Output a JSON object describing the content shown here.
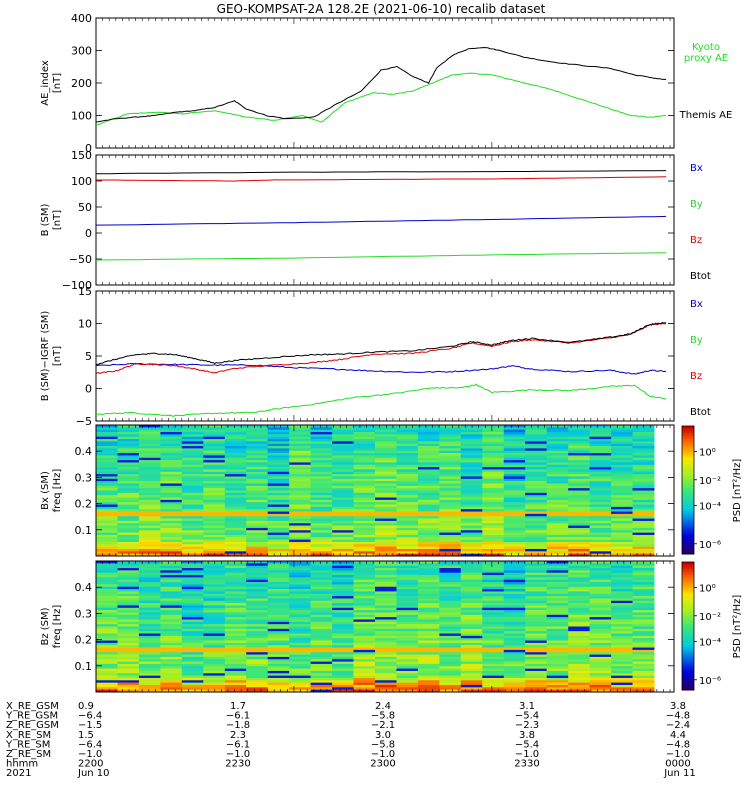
{
  "title": "GEO-KOMPSAT-2A 128.2E (2021-06-10) recalib dataset",
  "colors": {
    "black": "#000000",
    "green": "#22dd22",
    "blue": "#0000cc",
    "red": "#dd0000"
  },
  "chart_data": [
    {
      "type": "line",
      "id": "ae",
      "ylabel": "AE_index",
      "yunit": "[nT]",
      "ylim": [
        0,
        400
      ],
      "yticks": [
        "0",
        "100",
        "200",
        "300",
        "400"
      ],
      "x_hours": [
        22.0,
        23.5
      ],
      "series": [
        {
          "name": "Kyoto proxy AE",
          "color": "green",
          "points": [
            [
              0,
              70
            ],
            [
              0.08,
              105
            ],
            [
              0.15,
              110
            ],
            [
              0.22,
              105
            ],
            [
              0.3,
              115
            ],
            [
              0.38,
              95
            ],
            [
              0.45,
              85
            ],
            [
              0.52,
              100
            ],
            [
              0.57,
              80
            ],
            [
              0.63,
              140
            ],
            [
              0.7,
              170
            ],
            [
              0.75,
              165
            ],
            [
              0.8,
              175
            ],
            [
              0.85,
              200
            ],
            [
              0.9,
              225
            ],
            [
              0.95,
              230
            ],
            [
              1.0,
              225
            ],
            [
              1.05,
              210
            ],
            [
              1.1,
              195
            ],
            [
              1.15,
              180
            ],
            [
              1.2,
              160
            ],
            [
              1.25,
              140
            ],
            [
              1.3,
              120
            ],
            [
              1.35,
              100
            ],
            [
              1.4,
              95
            ],
            [
              1.44,
              100
            ]
          ]
        },
        {
          "name": "Themis AE",
          "color": "black",
          "points": [
            [
              0,
              80
            ],
            [
              0.05,
              90
            ],
            [
              0.1,
              95
            ],
            [
              0.15,
              100
            ],
            [
              0.2,
              110
            ],
            [
              0.25,
              115
            ],
            [
              0.3,
              125
            ],
            [
              0.35,
              145
            ],
            [
              0.38,
              120
            ],
            [
              0.43,
              100
            ],
            [
              0.48,
              90
            ],
            [
              0.55,
              95
            ],
            [
              0.6,
              130
            ],
            [
              0.67,
              175
            ],
            [
              0.72,
              240
            ],
            [
              0.76,
              250
            ],
            [
              0.8,
              220
            ],
            [
              0.84,
              200
            ],
            [
              0.86,
              245
            ],
            [
              0.9,
              285
            ],
            [
              0.94,
              305
            ],
            [
              0.98,
              310
            ],
            [
              1.02,
              300
            ],
            [
              1.08,
              280
            ],
            [
              1.15,
              265
            ],
            [
              1.22,
              255
            ],
            [
              1.3,
              245
            ],
            [
              1.36,
              225
            ],
            [
              1.41,
              215
            ],
            [
              1.44,
              210
            ]
          ]
        }
      ]
    },
    {
      "type": "line",
      "id": "bsm",
      "ylabel": "B (SM)",
      "yunit": "[nT]",
      "ylim": [
        -100,
        150
      ],
      "yticks": [
        "−100",
        "−50",
        "0",
        "50",
        "100",
        "150"
      ],
      "series": [
        {
          "name": "Bx",
          "color": "blue",
          "points": [
            [
              0,
              15
            ],
            [
              0.5,
              20
            ],
            [
              1.0,
              26
            ],
            [
              1.44,
              32
            ]
          ]
        },
        {
          "name": "By",
          "color": "green",
          "points": [
            [
              0,
              -52
            ],
            [
              0.5,
              -48
            ],
            [
              1.0,
              -42
            ],
            [
              1.44,
              -38
            ]
          ]
        },
        {
          "name": "Bz",
          "color": "red",
          "points": [
            [
              0,
              102
            ],
            [
              0.35,
              100
            ],
            [
              0.45,
              102
            ],
            [
              1.0,
              104
            ],
            [
              1.44,
              108
            ]
          ]
        },
        {
          "name": "Btot",
          "color": "black",
          "points": [
            [
              0,
              114
            ],
            [
              0.5,
              117
            ],
            [
              1.0,
              118
            ],
            [
              1.44,
              120
            ]
          ]
        }
      ]
    },
    {
      "type": "line",
      "id": "bigrf",
      "ylabel": "B (SM)−IGRF (SM)",
      "yunit": "[nT]",
      "ylim": [
        -5,
        15
      ],
      "yticks": [
        "−5",
        "0",
        "5",
        "10",
        "15"
      ],
      "series": [
        {
          "name": "Bx",
          "color": "blue",
          "points": [
            [
              0,
              3.5
            ],
            [
              0.1,
              3.8
            ],
            [
              0.2,
              3.7
            ],
            [
              0.3,
              3.6
            ],
            [
              0.4,
              3.6
            ],
            [
              0.5,
              3.2
            ],
            [
              0.6,
              3.0
            ],
            [
              0.7,
              2.7
            ],
            [
              0.8,
              2.5
            ],
            [
              0.9,
              2.6
            ],
            [
              1.0,
              3.0
            ],
            [
              1.05,
              3.5
            ],
            [
              1.1,
              3.0
            ],
            [
              1.2,
              2.6
            ],
            [
              1.3,
              2.8
            ],
            [
              1.36,
              2.2
            ],
            [
              1.4,
              2.8
            ],
            [
              1.44,
              2.6
            ]
          ]
        },
        {
          "name": "By",
          "color": "green",
          "points": [
            [
              0,
              -4.0
            ],
            [
              0.08,
              -3.7
            ],
            [
              0.15,
              -4.0
            ],
            [
              0.2,
              -4.2
            ],
            [
              0.3,
              -3.8
            ],
            [
              0.4,
              -3.7
            ],
            [
              0.45,
              -3.2
            ],
            [
              0.55,
              -2.4
            ],
            [
              0.65,
              -1.4
            ],
            [
              0.75,
              -0.8
            ],
            [
              0.85,
              0.1
            ],
            [
              0.92,
              0.1
            ],
            [
              0.96,
              0.6
            ],
            [
              1.0,
              -0.6
            ],
            [
              1.1,
              -0.2
            ],
            [
              1.2,
              -0.3
            ],
            [
              1.3,
              0.3
            ],
            [
              1.36,
              0.5
            ],
            [
              1.4,
              -1.2
            ],
            [
              1.44,
              -1.6
            ]
          ]
        },
        {
          "name": "Bz",
          "color": "red",
          "points": [
            [
              0,
              2.3
            ],
            [
              0.05,
              2.7
            ],
            [
              0.1,
              3.8
            ],
            [
              0.15,
              3.7
            ],
            [
              0.2,
              3.5
            ],
            [
              0.25,
              3.0
            ],
            [
              0.3,
              2.4
            ],
            [
              0.35,
              3.1
            ],
            [
              0.45,
              3.6
            ],
            [
              0.55,
              4.0
            ],
            [
              0.62,
              4.5
            ],
            [
              0.7,
              5.3
            ],
            [
              0.8,
              5.4
            ],
            [
              0.9,
              6.2
            ],
            [
              0.95,
              7.0
            ],
            [
              1.0,
              6.5
            ],
            [
              1.05,
              7.2
            ],
            [
              1.1,
              7.5
            ],
            [
              1.2,
              7.0
            ],
            [
              1.3,
              7.8
            ],
            [
              1.35,
              8.3
            ],
            [
              1.4,
              9.8
            ],
            [
              1.44,
              10.0
            ]
          ]
        },
        {
          "name": "Btot",
          "color": "black",
          "points": [
            [
              0,
              3.7
            ],
            [
              0.05,
              4.5
            ],
            [
              0.1,
              5.2
            ],
            [
              0.15,
              5.4
            ],
            [
              0.2,
              5.2
            ],
            [
              0.25,
              4.6
            ],
            [
              0.3,
              3.9
            ],
            [
              0.35,
              4.3
            ],
            [
              0.45,
              4.8
            ],
            [
              0.55,
              5.2
            ],
            [
              0.62,
              5.3
            ],
            [
              0.7,
              5.6
            ],
            [
              0.8,
              5.8
            ],
            [
              0.9,
              6.5
            ],
            [
              0.95,
              7.2
            ],
            [
              1.0,
              6.7
            ],
            [
              1.05,
              7.4
            ],
            [
              1.1,
              7.7
            ],
            [
              1.2,
              7.1
            ],
            [
              1.3,
              7.9
            ],
            [
              1.35,
              8.4
            ],
            [
              1.4,
              9.9
            ],
            [
              1.44,
              10.1
            ]
          ]
        }
      ]
    },
    {
      "type": "heatmap",
      "id": "bx-spec",
      "ylabel": "Bx (SM)",
      "yunit": "freq [Hz]",
      "ylim": [
        0,
        0.5
      ],
      "yticks": [
        "0.1",
        "0.2",
        "0.3",
        "0.4"
      ],
      "colorbar": {
        "label": "PSD [nT²/Hz]",
        "ticks": [
          "10⁰",
          "10⁻²",
          "10⁻⁴",
          "10⁻⁶"
        ]
      }
    },
    {
      "type": "heatmap",
      "id": "bz-spec",
      "ylabel": "Bz (SM)",
      "yunit": "freq [Hz]",
      "ylim": [
        0,
        0.5
      ],
      "yticks": [
        "0.1",
        "0.2",
        "0.3",
        "0.4"
      ],
      "colorbar": {
        "label": "PSD [nT²/Hz]",
        "ticks": [
          "10⁰",
          "10⁻²",
          "10⁻⁴",
          "10⁻⁶"
        ]
      }
    }
  ],
  "series_labels": {
    "ae": [
      {
        "text": "Kyoto\nproxy AE",
        "color": "green"
      },
      {
        "text": "Themis AE",
        "color": "black"
      }
    ],
    "bsm": [
      {
        "text": "Bx",
        "color": "blue"
      },
      {
        "text": "By",
        "color": "green"
      },
      {
        "text": "Bz",
        "color": "red"
      },
      {
        "text": "Btot",
        "color": "black"
      }
    ],
    "bigrf": [
      {
        "text": "Bx",
        "color": "blue"
      },
      {
        "text": "By",
        "color": "green"
      },
      {
        "text": "Bz",
        "color": "red"
      },
      {
        "text": "Btot",
        "color": "black"
      }
    ]
  },
  "x_axis": {
    "row_labels": [
      "X_RE_GSM",
      "Y_RE_GSM",
      "Z_RE_GSM",
      "X_RE_SM",
      "Y_RE_SM",
      "Z_RE_SM",
      "hhmm",
      "2021"
    ],
    "columns": [
      [
        "0.9",
        "−6.4",
        "−1.5",
        "1.5",
        "−6.4",
        "−1.0",
        "2200",
        "Jun 10"
      ],
      [
        "1.7",
        "−6.1",
        "−1.8",
        "2.3",
        "−6.1",
        "−1.0",
        "2230",
        ""
      ],
      [
        "2.4",
        "−5.8",
        "−2.1",
        "3.0",
        "−5.8",
        "−1.0",
        "2300",
        ""
      ],
      [
        "3.1",
        "−5.4",
        "−2.3",
        "3.8",
        "−5.4",
        "−1.0",
        "2330",
        ""
      ],
      [
        "3.8",
        "−4.8",
        "−2.4",
        "4.4",
        "−4.8",
        "−1.0",
        "0000",
        "Jun 11"
      ]
    ]
  }
}
